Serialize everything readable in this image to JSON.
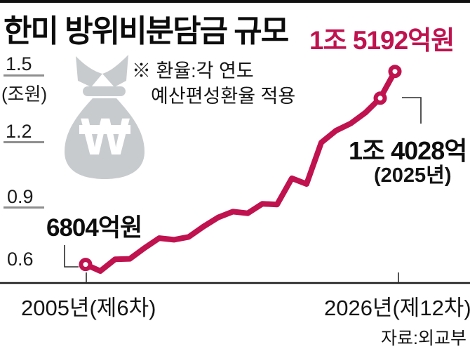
{
  "header": {
    "title": "한미 방위비분담금 규모",
    "highlight_value": "1조 5192억원"
  },
  "note": {
    "line1": "※ 환율:각 연도",
    "line2": "예산편성환율 적용"
  },
  "y_axis": {
    "unit_label": "(조원)",
    "ticks": [
      "1.5",
      "1.2",
      "0.9",
      "0.6"
    ]
  },
  "x_axis": {
    "left_label": "2005년(제6차)",
    "right_label": "2026년(제12차)"
  },
  "annotations": {
    "start_value": "6804억원",
    "latest_value": "1조 4028억",
    "latest_year": "(2025년)"
  },
  "source": "자료:외교부",
  "icons": {
    "money_bag": "won-money-bag-icon"
  },
  "colors": {
    "accent": "#c0124f",
    "bag_gray": "#c8cbce",
    "axis": "#1c1c1c",
    "tick_gray": "#8f8f8f"
  },
  "chart_data": {
    "type": "line",
    "title": "한미 방위비분담금 규모",
    "ylabel": "조원",
    "xlabel": "연도",
    "x": [
      2005,
      2006,
      2007,
      2008,
      2009,
      2010,
      2011,
      2012,
      2013,
      2014,
      2015,
      2016,
      2017,
      2018,
      2019,
      2020,
      2021,
      2022,
      2023,
      2024,
      2025,
      2026
    ],
    "values": [
      0.6804,
      0.652,
      0.703,
      0.705,
      0.752,
      0.795,
      0.788,
      0.8,
      0.845,
      0.885,
      0.91,
      0.903,
      0.944,
      0.941,
      1.055,
      1.03,
      1.21,
      1.262,
      1.293,
      1.34,
      1.4028,
      1.5192
    ],
    "ylim": [
      0.6,
      1.55
    ],
    "y_ticks": [
      0.6,
      0.9,
      1.2,
      1.5
    ],
    "marker_years": [
      2005,
      2025,
      2026
    ],
    "point_labels": [
      {
        "year": 2005,
        "label": "6804억원"
      },
      {
        "year": 2025,
        "label": "1조 4028억 (2025년)"
      },
      {
        "year": 2026,
        "label": "1조 5192억원"
      }
    ],
    "grid": false,
    "legend": "none"
  }
}
